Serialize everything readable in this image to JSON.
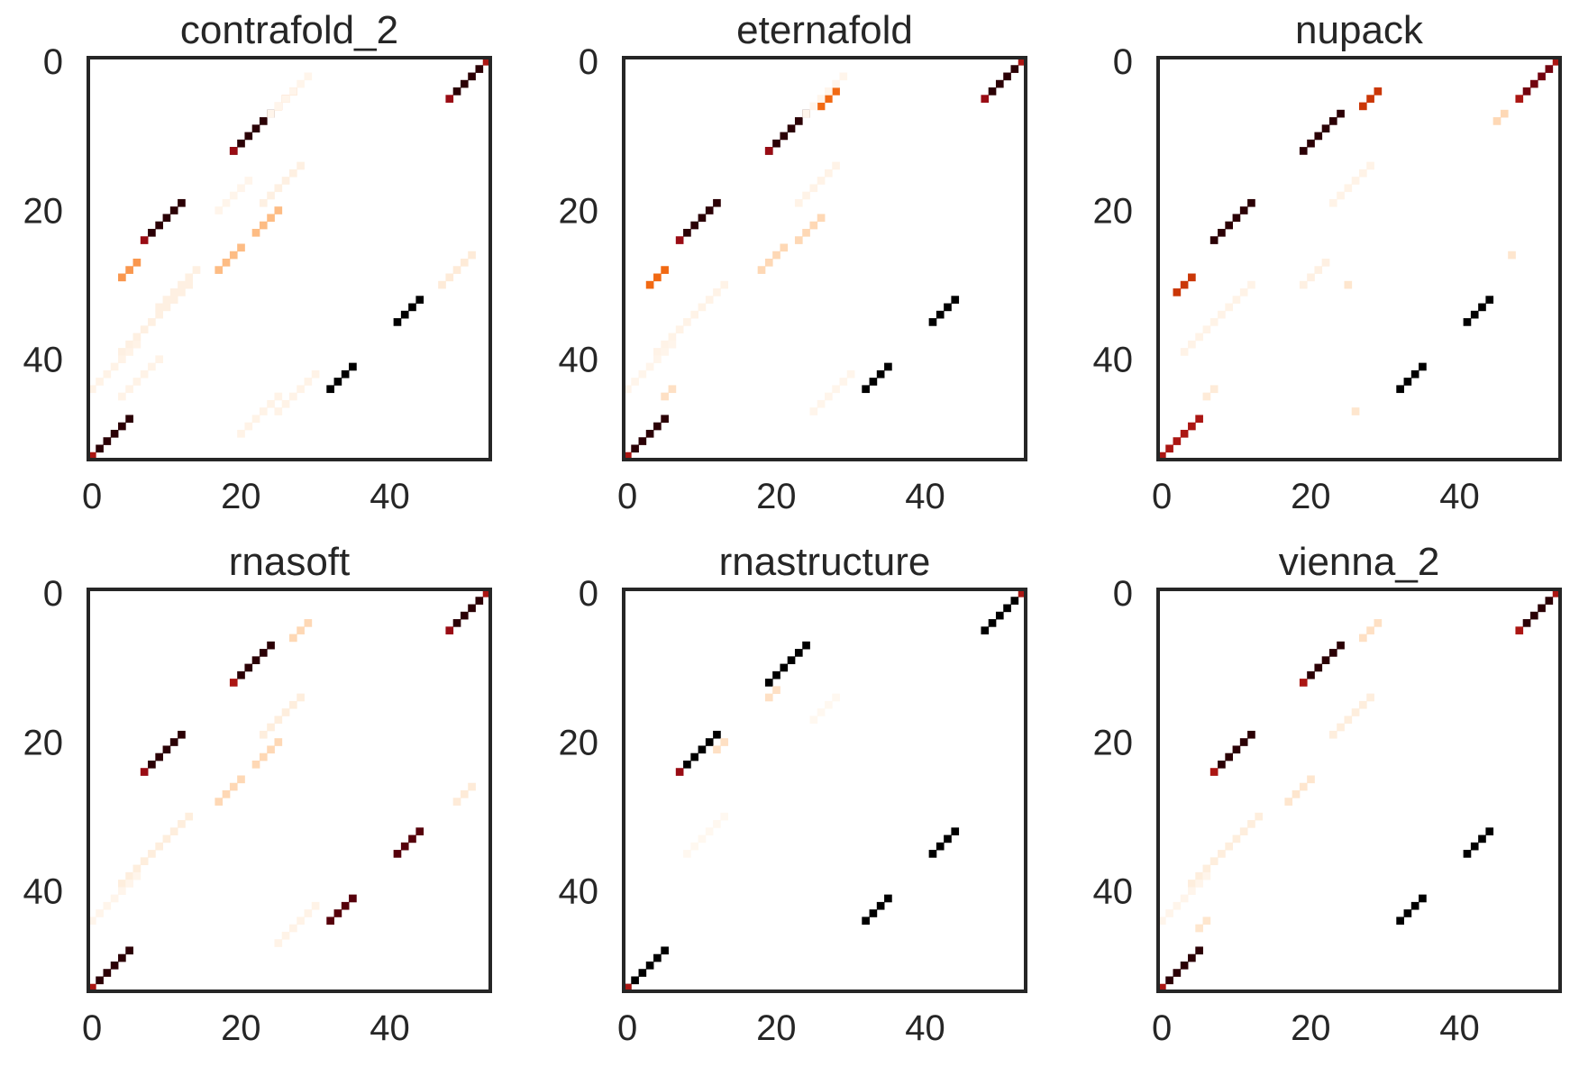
{
  "figure": {
    "colormap": [
      "#ffffff",
      "#fee6ce",
      "#fdae6b",
      "#f16913",
      "#d94801",
      "#a50f15",
      "#67000d",
      "#000000"
    ],
    "frame_color": "#262626"
  },
  "chart_data": [
    {
      "type": "heatmap",
      "title": "contrafold_2",
      "xlim": [
        0,
        54
      ],
      "ylim": [
        54,
        0
      ],
      "xticks": [
        "0",
        "20",
        "40"
      ],
      "yticks": [
        "0",
        "20",
        "40"
      ],
      "tick_values": [
        0,
        20,
        40
      ],
      "grid": false,
      "value_range": [
        0,
        1
      ],
      "helices": [
        {
          "i": 0,
          "j": 53,
          "len": 1,
          "p": 0.7
        },
        {
          "i": 1,
          "j": 52,
          "len": 4,
          "p": 0.95
        },
        {
          "i": 5,
          "j": 48,
          "len": 1,
          "p": 0.75
        },
        {
          "i": 7,
          "j": 24,
          "len": 6,
          "p": 0.95
        },
        {
          "i": 12,
          "j": 19,
          "len": 1,
          "p": 0.75
        },
        {
          "i": 4,
          "j": 27,
          "len": 3,
          "p": 0.35
        },
        {
          "i": 19,
          "j": 12,
          "len": 5,
          "p": 0.95
        },
        {
          "i": 24,
          "j": 7,
          "len": 1,
          "p": 0.75
        },
        {
          "i": 27,
          "j": 6,
          "len": 3,
          "p": 0.35
        },
        {
          "i": 25,
          "j": 20,
          "len": 4,
          "p": 0.25
        },
        {
          "i": 20,
          "j": 25,
          "len": 4,
          "p": 0.25
        },
        {
          "i": 32,
          "j": 44,
          "len": 4,
          "p": 1.0
        },
        {
          "i": 41,
          "j": 35,
          "len": 4,
          "p": 1.0
        },
        {
          "i": 48,
          "j": 5,
          "len": 5,
          "p": 0.95
        },
        {
          "i": 53,
          "j": 0,
          "len": 1,
          "p": 0.7
        },
        {
          "i": 14,
          "j": 28,
          "len": 6,
          "p": 0.06
        },
        {
          "i": 28,
          "j": 14,
          "len": 6,
          "p": 0.06
        },
        {
          "i": 30,
          "j": 13,
          "len": 10,
          "p": 0.06
        },
        {
          "i": 38,
          "j": 6,
          "len": 10,
          "p": 0.05
        },
        {
          "i": 40,
          "j": 9,
          "len": 6,
          "p": 0.05
        },
        {
          "i": 42,
          "j": 30,
          "len": 6,
          "p": 0.05
        },
        {
          "i": 26,
          "j": 51,
          "len": 5,
          "p": 0.08
        },
        {
          "i": 45,
          "j": 25,
          "len": 6,
          "p": 0.05
        },
        {
          "i": 2,
          "j": 29,
          "len": 6,
          "p": 0.04
        },
        {
          "i": 16,
          "j": 21,
          "len": 5,
          "p": 0.04
        }
      ]
    },
    {
      "type": "heatmap",
      "title": "eternafold",
      "xlim": [
        0,
        54
      ],
      "ylim": [
        54,
        0
      ],
      "xticks": [
        "0",
        "20",
        "40"
      ],
      "yticks": [
        "0",
        "20",
        "40"
      ],
      "tick_values": [
        0,
        20,
        40
      ],
      "grid": false,
      "value_range": [
        0,
        1
      ],
      "helices": [
        {
          "i": 0,
          "j": 53,
          "len": 1,
          "p": 0.7
        },
        {
          "i": 1,
          "j": 52,
          "len": 4,
          "p": 0.95
        },
        {
          "i": 5,
          "j": 48,
          "len": 1,
          "p": 0.75
        },
        {
          "i": 7,
          "j": 24,
          "len": 6,
          "p": 0.95
        },
        {
          "i": 12,
          "j": 19,
          "len": 1,
          "p": 0.75
        },
        {
          "i": 4,
          "j": 28,
          "len": 3,
          "p": 0.45
        },
        {
          "i": 19,
          "j": 12,
          "len": 5,
          "p": 0.95
        },
        {
          "i": 24,
          "j": 7,
          "len": 1,
          "p": 0.75
        },
        {
          "i": 28,
          "j": 5,
          "len": 3,
          "p": 0.45
        },
        {
          "i": 25,
          "j": 21,
          "len": 4,
          "p": 0.15
        },
        {
          "i": 21,
          "j": 26,
          "len": 4,
          "p": 0.15
        },
        {
          "i": 32,
          "j": 44,
          "len": 4,
          "p": 1.0
        },
        {
          "i": 41,
          "j": 35,
          "len": 4,
          "p": 1.0
        },
        {
          "i": 48,
          "j": 5,
          "len": 5,
          "p": 0.95
        },
        {
          "i": 53,
          "j": 0,
          "len": 1,
          "p": 0.7
        },
        {
          "i": 14,
          "j": 28,
          "len": 6,
          "p": 0.05
        },
        {
          "i": 30,
          "j": 13,
          "len": 10,
          "p": 0.05
        },
        {
          "i": 38,
          "j": 6,
          "len": 10,
          "p": 0.04
        },
        {
          "i": 42,
          "j": 30,
          "len": 6,
          "p": 0.04
        },
        {
          "i": 44,
          "j": 6,
          "len": 2,
          "p": 0.12
        },
        {
          "i": 2,
          "j": 29,
          "len": 6,
          "p": 0.04
        }
      ]
    },
    {
      "type": "heatmap",
      "title": "nupack",
      "xlim": [
        0,
        54
      ],
      "ylim": [
        54,
        0
      ],
      "xticks": [
        "0",
        "20",
        "40"
      ],
      "yticks": [
        "0",
        "20",
        "40"
      ],
      "tick_values": [
        0,
        20,
        40
      ],
      "grid": false,
      "value_range": [
        0,
        1
      ],
      "helices": [
        {
          "i": 0,
          "j": 53,
          "len": 1,
          "p": 0.7
        },
        {
          "i": 1,
          "j": 52,
          "len": 4,
          "p": 0.85
        },
        {
          "i": 5,
          "j": 48,
          "len": 1,
          "p": 0.7
        },
        {
          "i": 7,
          "j": 24,
          "len": 6,
          "p": 0.95
        },
        {
          "i": 4,
          "j": 29,
          "len": 3,
          "p": 0.6
        },
        {
          "i": 19,
          "j": 12,
          "len": 6,
          "p": 0.95
        },
        {
          "i": 29,
          "j": 4,
          "len": 3,
          "p": 0.6
        },
        {
          "i": 32,
          "j": 44,
          "len": 4,
          "p": 1.0
        },
        {
          "i": 41,
          "j": 35,
          "len": 4,
          "p": 1.0
        },
        {
          "i": 48,
          "j": 5,
          "len": 4,
          "p": 0.7
        },
        {
          "i": 52,
          "j": 1,
          "len": 1,
          "p": 0.7
        },
        {
          "i": 53,
          "j": 0,
          "len": 1,
          "p": 0.7
        },
        {
          "i": 7,
          "j": 46,
          "len": 2,
          "p": 0.15
        },
        {
          "i": 44,
          "j": 7,
          "len": 2,
          "p": 0.08
        },
        {
          "i": 14,
          "j": 28,
          "len": 6,
          "p": 0.05
        },
        {
          "i": 30,
          "j": 12,
          "len": 10,
          "p": 0.05
        },
        {
          "i": 27,
          "j": 22,
          "len": 4,
          "p": 0.06
        },
        {
          "i": 26,
          "j": 47,
          "len": 1,
          "p": 0.1
        },
        {
          "i": 30,
          "j": 25,
          "len": 1,
          "p": 0.1
        },
        {
          "i": 47,
          "j": 26,
          "len": 1,
          "p": 0.1
        }
      ]
    },
    {
      "type": "heatmap",
      "title": "rnasoft",
      "xlim": [
        0,
        54
      ],
      "ylim": [
        54,
        0
      ],
      "xticks": [
        "0",
        "20",
        "40"
      ],
      "yticks": [
        "0",
        "20",
        "40"
      ],
      "tick_values": [
        0,
        20,
        40
      ],
      "grid": false,
      "value_range": [
        0,
        1
      ],
      "helices": [
        {
          "i": 0,
          "j": 53,
          "len": 1,
          "p": 0.7
        },
        {
          "i": 1,
          "j": 52,
          "len": 4,
          "p": 0.95
        },
        {
          "i": 5,
          "j": 48,
          "len": 1,
          "p": 0.75
        },
        {
          "i": 7,
          "j": 24,
          "len": 5,
          "p": 0.95
        },
        {
          "i": 12,
          "j": 19,
          "len": 1,
          "p": 0.7
        },
        {
          "i": 19,
          "j": 12,
          "len": 5,
          "p": 0.95
        },
        {
          "i": 24,
          "j": 7,
          "len": 1,
          "p": 0.75
        },
        {
          "i": 32,
          "j": 44,
          "len": 4,
          "p": 0.9
        },
        {
          "i": 41,
          "j": 35,
          "len": 4,
          "p": 0.9
        },
        {
          "i": 48,
          "j": 5,
          "len": 5,
          "p": 0.95
        },
        {
          "i": 53,
          "j": 0,
          "len": 1,
          "p": 0.7
        },
        {
          "i": 4,
          "j": 29,
          "len": 3,
          "p": 0.15
        },
        {
          "i": 25,
          "j": 20,
          "len": 4,
          "p": 0.15
        },
        {
          "i": 20,
          "j": 25,
          "len": 4,
          "p": 0.15
        },
        {
          "i": 14,
          "j": 28,
          "len": 6,
          "p": 0.07
        },
        {
          "i": 30,
          "j": 13,
          "len": 10,
          "p": 0.07
        },
        {
          "i": 26,
          "j": 51,
          "len": 3,
          "p": 0.08
        },
        {
          "i": 42,
          "j": 30,
          "len": 6,
          "p": 0.05
        },
        {
          "i": 38,
          "j": 6,
          "len": 10,
          "p": 0.04
        }
      ]
    },
    {
      "type": "heatmap",
      "title": "rnastructure",
      "xlim": [
        0,
        54
      ],
      "ylim": [
        54,
        0
      ],
      "xticks": [
        "0",
        "20",
        "40"
      ],
      "yticks": [
        "0",
        "20",
        "40"
      ],
      "tick_values": [
        0,
        20,
        40
      ],
      "grid": false,
      "value_range": [
        0,
        1
      ],
      "helices": [
        {
          "i": 0,
          "j": 53,
          "len": 1,
          "p": 0.7
        },
        {
          "i": 1,
          "j": 52,
          "len": 5,
          "p": 1.0
        },
        {
          "i": 7,
          "j": 24,
          "len": 6,
          "p": 1.0
        },
        {
          "i": 19,
          "j": 12,
          "len": 5,
          "p": 1.0
        },
        {
          "i": 24,
          "j": 7,
          "len": 1,
          "p": 0.75
        },
        {
          "i": 32,
          "j": 44,
          "len": 4,
          "p": 1.0
        },
        {
          "i": 41,
          "j": 35,
          "len": 4,
          "p": 1.0
        },
        {
          "i": 48,
          "j": 5,
          "len": 6,
          "p": 1.0
        },
        {
          "i": 53,
          "j": 0,
          "len": 1,
          "p": 0.7
        },
        {
          "i": 13,
          "j": 20,
          "len": 2,
          "p": 0.12
        },
        {
          "i": 20,
          "j": 13,
          "len": 2,
          "p": 0.12
        },
        {
          "i": 14,
          "j": 28,
          "len": 4,
          "p": 0.03
        },
        {
          "i": 30,
          "j": 13,
          "len": 6,
          "p": 0.03
        }
      ]
    },
    {
      "type": "heatmap",
      "title": "vienna_2",
      "xlim": [
        0,
        54
      ],
      "ylim": [
        54,
        0
      ],
      "xticks": [
        "0",
        "20",
        "40"
      ],
      "yticks": [
        "0",
        "20",
        "40"
      ],
      "tick_values": [
        0,
        20,
        40
      ],
      "grid": false,
      "value_range": [
        0,
        1
      ],
      "helices": [
        {
          "i": 0,
          "j": 53,
          "len": 1,
          "p": 0.7
        },
        {
          "i": 1,
          "j": 52,
          "len": 4,
          "p": 0.95
        },
        {
          "i": 5,
          "j": 48,
          "len": 1,
          "p": 0.7
        },
        {
          "i": 7,
          "j": 24,
          "len": 5,
          "p": 0.95
        },
        {
          "i": 12,
          "j": 19,
          "len": 1,
          "p": 0.7
        },
        {
          "i": 19,
          "j": 12,
          "len": 5,
          "p": 0.95
        },
        {
          "i": 24,
          "j": 7,
          "len": 1,
          "p": 0.7
        },
        {
          "i": 32,
          "j": 44,
          "len": 4,
          "p": 1.0
        },
        {
          "i": 41,
          "j": 35,
          "len": 4,
          "p": 1.0
        },
        {
          "i": 48,
          "j": 5,
          "len": 5,
          "p": 0.95
        },
        {
          "i": 53,
          "j": 0,
          "len": 1,
          "p": 0.7
        },
        {
          "i": 4,
          "j": 29,
          "len": 3,
          "p": 0.12
        },
        {
          "i": 25,
          "j": 20,
          "len": 4,
          "p": 0.1
        },
        {
          "i": 14,
          "j": 28,
          "len": 6,
          "p": 0.07
        },
        {
          "i": 30,
          "j": 13,
          "len": 10,
          "p": 0.07
        },
        {
          "i": 44,
          "j": 6,
          "len": 2,
          "p": 0.1
        },
        {
          "i": 38,
          "j": 6,
          "len": 10,
          "p": 0.04
        }
      ]
    }
  ]
}
